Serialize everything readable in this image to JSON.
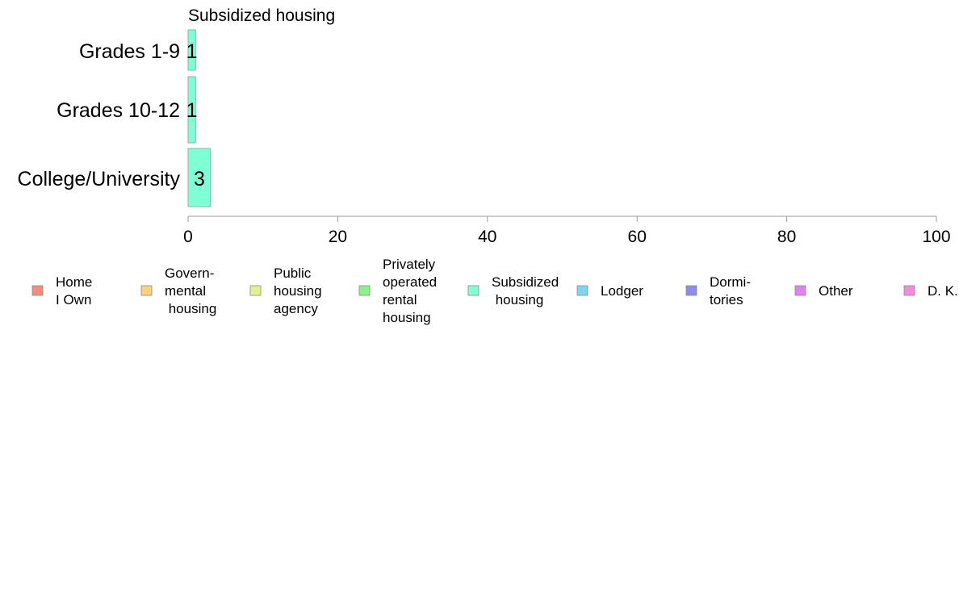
{
  "chart_data": {
    "type": "bar",
    "orientation": "horizontal",
    "title": "Subsidized housing",
    "categories": [
      "Grades 1-9",
      "Grades 10-12",
      "College/University"
    ],
    "series": [
      {
        "name": "Subsidized housing",
        "values": [
          1,
          1,
          3
        ],
        "color": "#7fffd4"
      }
    ],
    "data_labels": [
      "1",
      "1",
      "3"
    ],
    "xlim": [
      0,
      100
    ],
    "x_ticks": [
      0,
      20,
      40,
      60,
      80,
      100
    ],
    "x_tick_labels": [
      "0",
      "20",
      "40",
      "60",
      "80",
      "100"
    ],
    "grid": false,
    "legend_position": "bottom",
    "legend": [
      {
        "label": "Home\nI Own",
        "color": "#f28b82"
      },
      {
        "label": "Govern-\nmental\n housing",
        "color": "#f7d27f"
      },
      {
        "label": "Public\nhousing\nagency",
        "color": "#dff28b"
      },
      {
        "label": "Privately\noperated\nrental\nhousing",
        "color": "#8bf28b"
      },
      {
        "label": "Subsidized\n housing",
        "color": "#7fffd4"
      },
      {
        "label": "Lodger",
        "color": "#7fd4f2"
      },
      {
        "label": "Dormi-\ntories",
        "color": "#8b8bf2"
      },
      {
        "label": "Other",
        "color": "#df82f2"
      },
      {
        "label": "D. K.",
        "color": "#f28bd9"
      }
    ]
  }
}
